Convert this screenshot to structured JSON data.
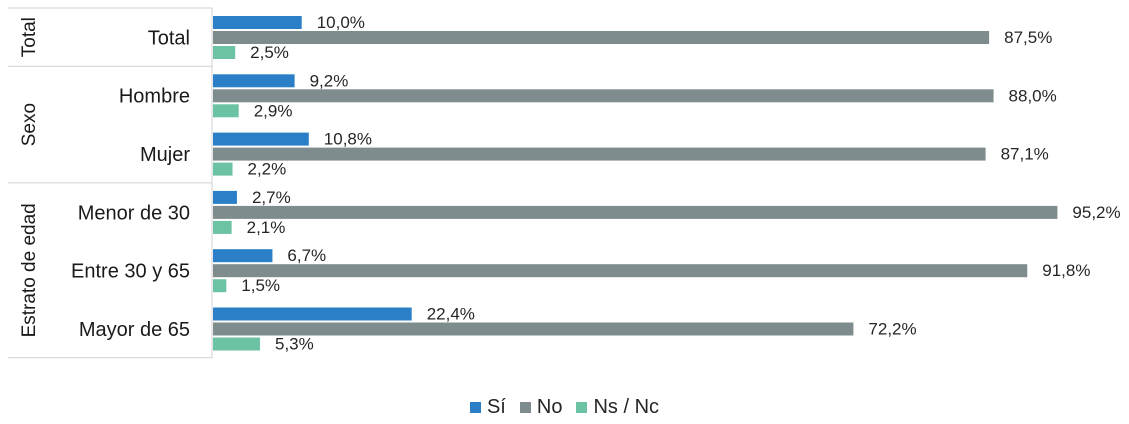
{
  "chart_data": {
    "type": "bar",
    "orientation": "horizontal",
    "groups": [
      {
        "label": "Total",
        "categories": [
          "Total"
        ]
      },
      {
        "label": "Sexo",
        "categories": [
          "Hombre",
          "Mujer"
        ]
      },
      {
        "label": "Estrato de edad",
        "categories": [
          "Menor de 30",
          "Entre 30 y 65",
          "Mayor de 65"
        ]
      }
    ],
    "categories": [
      "Total",
      "Hombre",
      "Mujer",
      "Menor de 30",
      "Entre 30 y 65",
      "Mayor de 65"
    ],
    "series": [
      {
        "name": "Sí",
        "color": "#2a7fc7",
        "values": [
          10.0,
          9.2,
          10.8,
          2.7,
          6.7,
          22.4
        ],
        "labels": [
          "10,0%",
          "9,2%",
          "10,8%",
          "2,7%",
          "6,7%",
          "22,4%"
        ]
      },
      {
        "name": "No",
        "color": "#7f8c8d",
        "values": [
          87.5,
          88.0,
          87.1,
          95.2,
          91.8,
          72.2
        ],
        "labels": [
          "87,5%",
          "88,0%",
          "87,1%",
          "95,2%",
          "91,8%",
          "72,2%"
        ]
      },
      {
        "name": "Ns / Nc",
        "color": "#6cc3a3",
        "values": [
          2.5,
          2.9,
          2.2,
          2.1,
          1.5,
          5.3
        ],
        "labels": [
          "2,5%",
          "2,9%",
          "2,2%",
          "2,1%",
          "1,5%",
          "5,3%"
        ]
      }
    ],
    "xlim": [
      0,
      100
    ],
    "legend": "bottom-center",
    "grid": false
  }
}
